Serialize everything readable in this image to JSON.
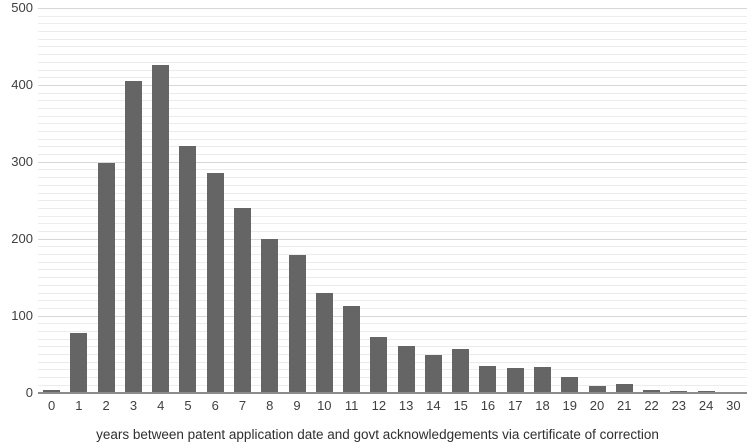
{
  "chart_data": {
    "type": "bar",
    "categories": [
      "0",
      "1",
      "2",
      "3",
      "4",
      "5",
      "6",
      "7",
      "8",
      "9",
      "10",
      "11",
      "12",
      "13",
      "14",
      "15",
      "16",
      "17",
      "18",
      "19",
      "20",
      "21",
      "22",
      "23",
      "24",
      "30"
    ],
    "values": [
      3,
      77,
      298,
      405,
      426,
      321,
      285,
      240,
      199,
      179,
      129,
      112,
      72,
      61,
      49,
      57,
      34,
      32,
      33,
      20,
      8,
      11,
      3,
      2,
      2,
      1
    ],
    "title": "",
    "xlabel": "years between patent application date and govt acknowledgements via certificate of correction",
    "ylabel": "",
    "ylim": [
      0,
      500
    ],
    "yticks": [
      0,
      100,
      200,
      300,
      400,
      500
    ],
    "minor_gridline_step": 10,
    "grid": true,
    "legend_position": "none",
    "colors": {
      "bar": "#656565",
      "grid_minor": "#ececec",
      "grid_major": "#d8d8d8",
      "axis_line": "#8c8c8c",
      "tick_label": "#3f3f3f",
      "background": "#ffffff"
    }
  }
}
